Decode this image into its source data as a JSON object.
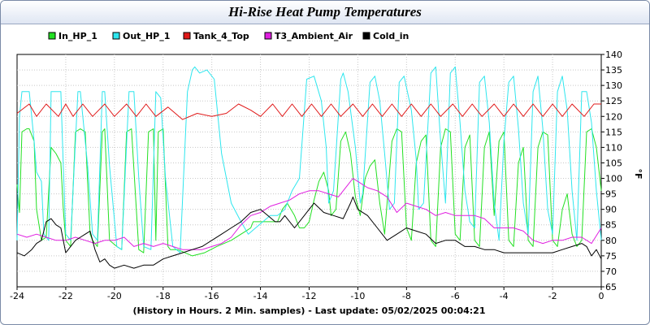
{
  "chart_data": {
    "type": "line",
    "title": "Hi-Rise Heat Pump Temperatures",
    "xlabel": "(History in Hours. 2 Min. samples) - Last update: 05/02/2025 00:04:21",
    "ylabel": "°F",
    "xlim": [
      -24,
      0
    ],
    "ylim": [
      65,
      140
    ],
    "xticks": [
      -24,
      -22,
      -20,
      -18,
      -16,
      -14,
      -12,
      -10,
      -8,
      -6,
      -4,
      -2,
      0
    ],
    "yticks": [
      65,
      70,
      75,
      80,
      85,
      90,
      95,
      100,
      105,
      110,
      115,
      120,
      125,
      130,
      135,
      140
    ],
    "grid": true,
    "legend_position": "top",
    "series": [
      {
        "name": "In_HP_1",
        "color": "#22e022",
        "x": [
          -24.0,
          -23.9,
          -23.8,
          -23.6,
          -23.5,
          -23.3,
          -23.2,
          -23.0,
          -22.8,
          -22.6,
          -22.4,
          -22.2,
          -22.1,
          -22.0,
          -21.8,
          -21.6,
          -21.4,
          -21.2,
          -21.0,
          -20.9,
          -20.7,
          -20.5,
          -20.4,
          -20.2,
          -19.9,
          -19.7,
          -19.5,
          -19.3,
          -19.1,
          -19.0,
          -18.8,
          -18.6,
          -18.4,
          -18.3,
          -18.2,
          -18.0,
          -17.8,
          -17.7,
          -17.4,
          -17.1,
          -16.8,
          -16.3,
          -15.8,
          -15.2,
          -14.8,
          -14.6,
          -14.4,
          -14.3,
          -14.1,
          -13.9,
          -13.6,
          -13.3,
          -13.1,
          -12.9,
          -12.6,
          -12.4,
          -12.2,
          -12.0,
          -11.8,
          -11.6,
          -11.4,
          -11.2,
          -11.1,
          -10.9,
          -10.7,
          -10.5,
          -10.3,
          -10.1,
          -9.9,
          -9.7,
          -9.5,
          -9.3,
          -9.1,
          -8.9,
          -8.6,
          -8.4,
          -8.2,
          -8.0,
          -7.8,
          -7.6,
          -7.4,
          -7.2,
          -7.0,
          -6.8,
          -6.6,
          -6.4,
          -6.2,
          -6.0,
          -5.8,
          -5.6,
          -5.4,
          -5.2,
          -5.0,
          -4.8,
          -4.6,
          -4.4,
          -4.2,
          -4.0,
          -3.8,
          -3.6,
          -3.4,
          -3.2,
          -3.0,
          -2.8,
          -2.6,
          -2.4,
          -2.2,
          -2.0,
          -1.8,
          -1.6,
          -1.4,
          -1.2,
          -1.0,
          -0.8,
          -0.6,
          -0.4,
          -0.2,
          0.0
        ],
        "values": [
          98,
          89,
          115,
          116,
          116,
          112,
          90,
          80,
          81,
          110,
          108,
          105,
          90,
          80,
          78,
          115,
          116,
          115,
          82,
          80,
          78,
          115,
          116,
          80,
          78,
          77,
          115,
          116,
          90,
          77,
          76,
          115,
          116,
          80,
          115,
          116,
          78,
          77,
          77,
          76,
          75,
          76,
          78,
          80,
          82,
          83,
          84,
          86,
          86,
          86,
          86,
          86,
          90,
          92,
          88,
          84,
          84,
          86,
          93,
          99,
          102,
          96,
          88,
          90,
          112,
          115,
          108,
          94,
          88,
          100,
          104,
          106,
          92,
          82,
          112,
          116,
          115,
          84,
          80,
          105,
          112,
          114,
          80,
          78,
          110,
          116,
          115,
          82,
          80,
          110,
          114,
          80,
          78,
          110,
          115,
          88,
          112,
          115,
          80,
          78,
          105,
          110,
          80,
          78,
          110,
          115,
          114,
          80,
          78,
          90,
          95,
          82,
          78,
          80,
          115,
          116,
          110,
          96
        ]
      },
      {
        "name": "Out_HP_1",
        "color": "#2ee6ee",
        "x": [
          -24.0,
          -23.9,
          -23.8,
          -23.5,
          -23.3,
          -23.2,
          -23.0,
          -22.9,
          -22.7,
          -22.6,
          -22.2,
          -22.1,
          -22.0,
          -21.8,
          -21.5,
          -21.4,
          -21.1,
          -20.9,
          -20.7,
          -20.5,
          -20.4,
          -20.2,
          -19.9,
          -19.7,
          -19.4,
          -19.2,
          -19.0,
          -18.8,
          -18.5,
          -18.3,
          -18.1,
          -17.9,
          -17.6,
          -17.3,
          -17.0,
          -16.8,
          -16.7,
          -16.5,
          -16.2,
          -15.9,
          -15.6,
          -15.2,
          -14.8,
          -14.5,
          -14.2,
          -13.9,
          -13.6,
          -13.3,
          -13.0,
          -12.7,
          -12.4,
          -12.1,
          -11.8,
          -11.5,
          -11.3,
          -11.2,
          -11.0,
          -10.7,
          -10.6,
          -10.4,
          -10.1,
          -9.9,
          -9.8,
          -9.5,
          -9.3,
          -9.1,
          -8.9,
          -8.7,
          -8.5,
          -8.3,
          -8.1,
          -7.8,
          -7.6,
          -7.5,
          -7.3,
          -7.0,
          -6.8,
          -6.6,
          -6.4,
          -6.2,
          -6.0,
          -5.8,
          -5.6,
          -5.4,
          -5.2,
          -5.0,
          -4.8,
          -4.6,
          -4.4,
          -4.2,
          -4.0,
          -3.8,
          -3.6,
          -3.4,
          -3.2,
          -3.0,
          -2.8,
          -2.6,
          -2.4,
          -2.2,
          -2.0,
          -1.8,
          -1.6,
          -1.4,
          -1.2,
          -1.0,
          -0.8,
          -0.6,
          -0.4,
          -0.2,
          0.0
        ],
        "values": [
          80,
          120,
          128,
          128,
          112,
          102,
          99,
          82,
          80,
          128,
          128,
          104,
          82,
          80,
          128,
          128,
          104,
          82,
          80,
          128,
          128,
          104,
          78,
          77,
          128,
          128,
          100,
          78,
          77,
          128,
          126,
          100,
          78,
          76,
          128,
          135,
          136,
          134,
          135,
          132,
          108,
          92,
          86,
          82,
          84,
          86,
          88,
          88,
          90,
          96,
          100,
          132,
          133,
          125,
          110,
          92,
          96,
          132,
          134,
          128,
          110,
          92,
          95,
          131,
          133,
          125,
          108,
          90,
          92,
          131,
          133,
          122,
          106,
          90,
          92,
          134,
          136,
          112,
          92,
          134,
          136,
          118,
          96,
          86,
          84,
          131,
          133,
          118,
          92,
          80,
          112,
          131,
          133,
          116,
          92,
          82,
          128,
          133,
          116,
          90,
          82,
          128,
          133,
          122,
          96,
          80,
          128,
          128,
          118,
          96,
          80
        ]
      },
      {
        "name": "Tank_4_Top",
        "color": "#e01818",
        "x": [
          -24.0,
          -23.5,
          -23.2,
          -22.8,
          -22.3,
          -22.0,
          -21.7,
          -21.3,
          -20.9,
          -20.4,
          -20.0,
          -19.5,
          -19.1,
          -18.7,
          -18.3,
          -17.8,
          -17.2,
          -16.6,
          -16.0,
          -15.4,
          -14.9,
          -14.4,
          -14.0,
          -13.5,
          -13.1,
          -12.7,
          -12.3,
          -11.9,
          -11.5,
          -11.1,
          -10.7,
          -10.2,
          -9.8,
          -9.4,
          -9.0,
          -8.6,
          -8.2,
          -7.8,
          -7.4,
          -7.0,
          -6.6,
          -6.1,
          -5.7,
          -5.3,
          -4.9,
          -4.4,
          -4.0,
          -3.6,
          -3.2,
          -2.8,
          -2.4,
          -2.0,
          -1.6,
          -1.2,
          -0.7,
          -0.3,
          0.0
        ],
        "values": [
          121,
          124,
          120,
          124,
          120,
          124,
          120,
          124,
          120,
          124,
          120,
          124,
          120,
          124,
          120,
          123,
          119,
          121,
          120,
          121,
          124,
          122,
          120,
          124,
          120,
          124,
          120,
          124,
          120,
          124,
          120,
          124,
          120,
          124,
          120,
          124,
          120,
          124,
          120,
          124,
          120,
          124,
          120,
          124,
          120,
          124,
          120,
          124,
          120,
          124,
          120,
          124,
          120,
          124,
          120,
          124,
          124
        ]
      },
      {
        "name": "T3_Ambient_Air",
        "color": "#e01ee0",
        "x": [
          -24.0,
          -23.6,
          -23.2,
          -22.8,
          -22.4,
          -22.0,
          -21.6,
          -21.2,
          -20.8,
          -20.4,
          -20.0,
          -19.6,
          -19.2,
          -18.8,
          -18.4,
          -18.0,
          -17.6,
          -17.2,
          -16.8,
          -16.4,
          -16.0,
          -15.6,
          -15.2,
          -14.8,
          -14.4,
          -14.0,
          -13.6,
          -13.2,
          -12.8,
          -12.4,
          -12.0,
          -11.6,
          -11.2,
          -10.8,
          -10.4,
          -10.2,
          -10.0,
          -9.6,
          -9.2,
          -8.8,
          -8.4,
          -8.0,
          -7.6,
          -7.2,
          -6.8,
          -6.4,
          -6.0,
          -5.6,
          -5.2,
          -4.8,
          -4.4,
          -4.0,
          -3.6,
          -3.2,
          -2.8,
          -2.4,
          -2.0,
          -1.6,
          -1.2,
          -0.8,
          -0.4,
          0.0
        ],
        "values": [
          82,
          81,
          82,
          81,
          80,
          80,
          81,
          80,
          79,
          80,
          80,
          81,
          78,
          79,
          78,
          79,
          78,
          77,
          77,
          77,
          78,
          79,
          81,
          85,
          88,
          89,
          91,
          92,
          93,
          95,
          96,
          96,
          95,
          94,
          98,
          100,
          99,
          97,
          96,
          94,
          89,
          92,
          91,
          90,
          88,
          89,
          88,
          88,
          88,
          87,
          84,
          84,
          84,
          83,
          80,
          79,
          80,
          80,
          81,
          81,
          79,
          84
        ]
      },
      {
        "name": "Cold_in",
        "color": "#000000",
        "x": [
          -24.0,
          -23.7,
          -23.4,
          -23.2,
          -23.0,
          -22.8,
          -22.6,
          -22.4,
          -22.2,
          -22.0,
          -21.8,
          -21.6,
          -21.4,
          -21.2,
          -21.0,
          -20.8,
          -20.6,
          -20.4,
          -20.2,
          -20.0,
          -19.6,
          -19.2,
          -18.8,
          -18.4,
          -18.0,
          -17.6,
          -17.2,
          -16.8,
          -16.4,
          -16.0,
          -15.6,
          -15.2,
          -14.8,
          -14.4,
          -14.0,
          -13.7,
          -13.4,
          -13.2,
          -13.0,
          -12.6,
          -12.2,
          -11.8,
          -11.4,
          -11.0,
          -10.6,
          -10.3,
          -10.2,
          -10.0,
          -9.6,
          -9.2,
          -8.8,
          -8.4,
          -8.0,
          -7.6,
          -7.2,
          -6.8,
          -6.4,
          -6.0,
          -5.6,
          -5.2,
          -4.8,
          -4.4,
          -4.0,
          -3.6,
          -3.2,
          -2.8,
          -2.4,
          -2.0,
          -1.6,
          -1.2,
          -0.8,
          -0.6,
          -0.4,
          -0.2,
          0.0
        ],
        "values": [
          76,
          75,
          77,
          79,
          80,
          86,
          87,
          85,
          84,
          76,
          78,
          80,
          81,
          82,
          83,
          77,
          73,
          74,
          72,
          71,
          72,
          71,
          72,
          72,
          74,
          75,
          76,
          77,
          78,
          80,
          82,
          84,
          86,
          89,
          90,
          88,
          86,
          86,
          88,
          84,
          88,
          92,
          89,
          88,
          87,
          92,
          94,
          90,
          88,
          84,
          80,
          82,
          84,
          83,
          82,
          79,
          80,
          80,
          78,
          78,
          77,
          77,
          76,
          76,
          76,
          76,
          76,
          76,
          77,
          78,
          79,
          78,
          75,
          77,
          74
        ]
      }
    ]
  }
}
